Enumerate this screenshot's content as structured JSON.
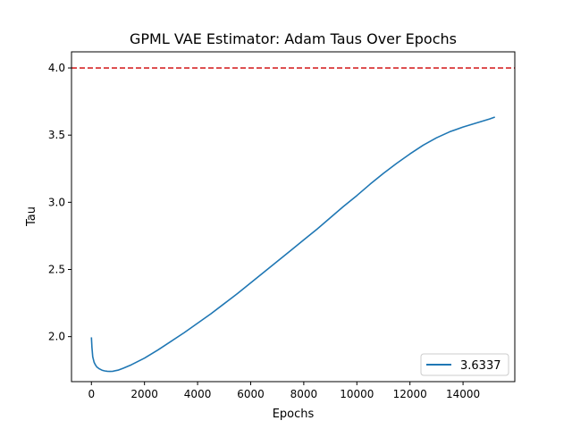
{
  "chart_data": {
    "type": "line",
    "title": "GPML VAE Estimator: Adam Taus Over Epochs",
    "xlabel": "Epochs",
    "ylabel": "Tau",
    "xlim": [
      -750,
      15950
    ],
    "ylim": [
      1.665,
      4.12
    ],
    "xticks": [
      0,
      2000,
      4000,
      6000,
      8000,
      10000,
      12000,
      14000
    ],
    "xtick_labels": [
      "0",
      "2000",
      "4000",
      "6000",
      "8000",
      "10000",
      "12000",
      "14000"
    ],
    "yticks": [
      2.0,
      2.5,
      3.0,
      3.5,
      4.0
    ],
    "ytick_labels": [
      "2.0",
      "2.5",
      "3.0",
      "3.5",
      "4.0"
    ],
    "grid": false,
    "legend": {
      "position": "lower-right"
    },
    "reference_line": {
      "y": 4.0,
      "color": "#d62728",
      "style": "dashed"
    },
    "series": [
      {
        "name": "3.6337",
        "color": "#1f77b4",
        "x": [
          0,
          20,
          50,
          100,
          150,
          200,
          300,
          400,
          500,
          600,
          700,
          800,
          1000,
          1200,
          1500,
          2000,
          2500,
          3000,
          3500,
          4000,
          4500,
          5000,
          5500,
          6000,
          6500,
          7000,
          7500,
          8000,
          8500,
          9000,
          9500,
          10000,
          10500,
          11000,
          11500,
          12000,
          12500,
          13000,
          13500,
          14000,
          14500,
          15000,
          15200
        ],
        "y": [
          1.995,
          1.92,
          1.85,
          1.81,
          1.79,
          1.775,
          1.76,
          1.75,
          1.745,
          1.742,
          1.741,
          1.742,
          1.75,
          1.765,
          1.79,
          1.84,
          1.9,
          1.965,
          2.03,
          2.1,
          2.17,
          2.245,
          2.32,
          2.4,
          2.48,
          2.56,
          2.64,
          2.72,
          2.8,
          2.885,
          2.97,
          3.05,
          3.135,
          3.215,
          3.29,
          3.36,
          3.425,
          3.48,
          3.525,
          3.56,
          3.59,
          3.62,
          3.634
        ]
      }
    ]
  }
}
